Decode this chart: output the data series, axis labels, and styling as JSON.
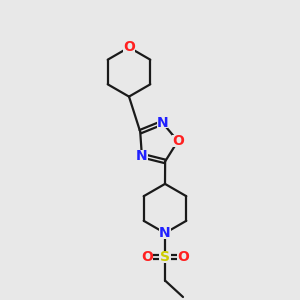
{
  "bg_color": "#e8e8e8",
  "bond_color": "#1a1a1a",
  "N_color": "#2020ff",
  "O_color": "#ff2020",
  "S_color": "#cccc00",
  "bond_width": 1.6,
  "font_size_atoms": 10,
  "fig_width": 3.0,
  "fig_height": 3.0,
  "xlim": [
    0,
    10
  ],
  "ylim": [
    0,
    10
  ]
}
